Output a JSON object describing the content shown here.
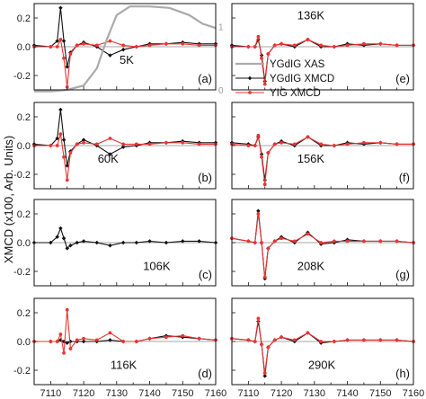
{
  "figure": {
    "ylabel": "XMCD (x100, Arb. Units)"
  },
  "legend": [
    {
      "name": "YGdIG XAS",
      "color": "#aaaaaa",
      "marker": "none"
    },
    {
      "name": "YGdIG XMCD",
      "color": "#111111",
      "marker": "diamond"
    },
    {
      "name": "YIG XMCD",
      "color": "#ee3333",
      "marker": "circle"
    }
  ],
  "chart_data": [
    {
      "id": "a",
      "type": "line",
      "label": "(a)",
      "temperature": "5K",
      "xlim": [
        7105,
        7160
      ],
      "ylim": [
        -0.3,
        0.3
      ],
      "yticks": [
        "0.2",
        "0.0",
        "-0.2"
      ],
      "xticks": [],
      "xas_ticks": [
        "1",
        "0"
      ],
      "series": [
        {
          "name": "YGdIG XMCD",
          "x": [
            7105,
            7110,
            7112,
            7113,
            7114,
            7115,
            7116,
            7118,
            7120,
            7124,
            7128,
            7132,
            7136,
            7140,
            7145,
            7150,
            7155,
            7160
          ],
          "y": [
            0.01,
            0.0,
            0.04,
            0.27,
            0.04,
            -0.14,
            -0.04,
            0.01,
            0.03,
            0.0,
            -0.06,
            -0.02,
            0.0,
            0.02,
            0.02,
            0.03,
            0.02,
            0.02
          ]
        },
        {
          "name": "YIG XMCD",
          "x": [
            7105,
            7110,
            7112,
            7113,
            7114,
            7115,
            7116,
            7118,
            7120,
            7124,
            7128,
            7132,
            7136,
            7140,
            7145,
            7150,
            7155,
            7160
          ],
          "y": [
            0.0,
            0.0,
            0.0,
            0.05,
            -0.08,
            -0.28,
            -0.05,
            0.01,
            0.02,
            0.01,
            0.04,
            0.01,
            0.0,
            0.01,
            0.02,
            0.02,
            0.01,
            0.01
          ]
        },
        {
          "name": "YGdIG XAS",
          "x": [
            7105,
            7110,
            7115,
            7120,
            7124,
            7127,
            7130,
            7134,
            7140,
            7146,
            7152,
            7156,
            7160
          ],
          "y": [
            -0.31,
            -0.31,
            -0.3,
            -0.27,
            -0.15,
            0.05,
            0.22,
            0.28,
            0.28,
            0.27,
            0.22,
            0.16,
            0.13
          ]
        }
      ]
    },
    {
      "id": "b",
      "type": "line",
      "label": "(b)",
      "temperature": "60K",
      "xlim": [
        7105,
        7160
      ],
      "ylim": [
        -0.3,
        0.3
      ],
      "yticks": [
        "0.2",
        "0.0",
        "-0.2"
      ],
      "xticks": [],
      "series": [
        {
          "name": "YGdIG XMCD",
          "x": [
            7105,
            7110,
            7112,
            7113,
            7114,
            7115,
            7116,
            7118,
            7120,
            7124,
            7128,
            7132,
            7136,
            7140,
            7145,
            7150,
            7155,
            7160
          ],
          "y": [
            0.01,
            0.0,
            0.05,
            0.25,
            0.04,
            -0.14,
            -0.04,
            0.01,
            0.04,
            0.0,
            -0.06,
            -0.01,
            0.0,
            0.02,
            0.02,
            0.03,
            0.02,
            0.02
          ]
        },
        {
          "name": "YIG XMCD",
          "x": [
            7105,
            7110,
            7112,
            7113,
            7114,
            7115,
            7116,
            7118,
            7120,
            7124,
            7128,
            7132,
            7136,
            7140,
            7145,
            7150,
            7155,
            7160
          ],
          "y": [
            0.0,
            0.0,
            0.0,
            0.08,
            -0.08,
            -0.24,
            -0.05,
            0.01,
            0.02,
            0.01,
            0.05,
            0.01,
            0.01,
            0.01,
            0.02,
            0.02,
            0.01,
            0.01
          ]
        }
      ]
    },
    {
      "id": "c",
      "type": "line",
      "label": "(c)",
      "temperature": "106K",
      "xlim": [
        7105,
        7160
      ],
      "ylim": [
        -0.3,
        0.3
      ],
      "yticks": [
        "0.2",
        "0.0",
        "-0.2"
      ],
      "xticks": [],
      "series": [
        {
          "name": "YGdIG XMCD",
          "x": [
            7105,
            7110,
            7112,
            7113,
            7114,
            7115,
            7116,
            7118,
            7120,
            7124,
            7128,
            7132,
            7136,
            7140,
            7145,
            7150,
            7155,
            7160
          ],
          "y": [
            0.0,
            0.0,
            0.04,
            0.1,
            0.03,
            -0.04,
            -0.02,
            0.0,
            0.01,
            0.0,
            -0.02,
            0.0,
            0.0,
            0.01,
            0.0,
            0.01,
            0.01,
            0.0
          ]
        }
      ]
    },
    {
      "id": "d",
      "type": "line",
      "label": "(d)",
      "temperature": "116K",
      "xlim": [
        7105,
        7160
      ],
      "ylim": [
        -0.3,
        0.3
      ],
      "yticks": [
        "0.2",
        "0.0",
        "-0.2"
      ],
      "xticks": [
        "7110",
        "7120",
        "7130",
        "7140",
        "7150",
        "7160"
      ],
      "series": [
        {
          "name": "YGdIG XMCD",
          "x": [
            7105,
            7110,
            7112,
            7113,
            7114,
            7115,
            7116,
            7118,
            7120,
            7124,
            7128,
            7132,
            7136,
            7140,
            7145,
            7150,
            7155,
            7160
          ],
          "y": [
            0.0,
            0.0,
            0.0,
            0.01,
            0.0,
            -0.01,
            0.0,
            0.0,
            0.0,
            0.0,
            0.01,
            0.0,
            0.0,
            0.02,
            0.04,
            0.03,
            0.02,
            0.01
          ]
        },
        {
          "name": "YIG XMCD",
          "x": [
            7105,
            7110,
            7112,
            7113,
            7114,
            7115,
            7116,
            7118,
            7120,
            7124,
            7128,
            7132,
            7136,
            7140,
            7145,
            7150,
            7155,
            7160
          ],
          "y": [
            0.0,
            0.0,
            0.0,
            0.05,
            -0.08,
            0.22,
            -0.05,
            0.01,
            0.02,
            0.01,
            0.06,
            0.0,
            0.0,
            0.02,
            0.03,
            0.04,
            0.02,
            0.01
          ]
        }
      ]
    },
    {
      "id": "e",
      "type": "line",
      "label": "(e)",
      "temperature": "136K",
      "xlim": [
        7105,
        7160
      ],
      "ylim": [
        -0.3,
        0.3
      ],
      "yticks": [],
      "xticks": [],
      "series": [
        {
          "name": "YGdIG XMCD",
          "x": [
            7105,
            7110,
            7112,
            7113,
            7114,
            7115,
            7116,
            7118,
            7120,
            7124,
            7128,
            7132,
            7136,
            7140,
            7145,
            7150,
            7155,
            7160
          ],
          "y": [
            0.01,
            0.0,
            0.0,
            0.05,
            -0.06,
            -0.24,
            -0.05,
            0.01,
            0.02,
            0.0,
            0.05,
            0.0,
            0.0,
            0.02,
            0.01,
            0.02,
            0.01,
            0.01
          ]
        },
        {
          "name": "YIG XMCD",
          "x": [
            7105,
            7110,
            7112,
            7113,
            7114,
            7115,
            7116,
            7118,
            7120,
            7124,
            7128,
            7132,
            7136,
            7140,
            7145,
            7150,
            7155,
            7160
          ],
          "y": [
            0.0,
            0.0,
            0.0,
            0.07,
            -0.08,
            -0.26,
            -0.05,
            0.01,
            0.02,
            0.01,
            0.05,
            0.01,
            0.0,
            0.01,
            0.02,
            0.02,
            0.01,
            0.01
          ]
        }
      ]
    },
    {
      "id": "f",
      "type": "line",
      "label": "(f)",
      "temperature": "156K",
      "xlim": [
        7105,
        7160
      ],
      "ylim": [
        -0.3,
        0.3
      ],
      "yticks": [],
      "xticks": [],
      "series": [
        {
          "name": "YGdIG XMCD",
          "x": [
            7105,
            7110,
            7112,
            7113,
            7114,
            7115,
            7116,
            7118,
            7120,
            7124,
            7128,
            7132,
            7136,
            7140,
            7145,
            7150,
            7155,
            7160
          ],
          "y": [
            0.02,
            0.01,
            0.0,
            0.06,
            -0.06,
            -0.24,
            -0.05,
            0.01,
            0.03,
            0.0,
            0.06,
            0.0,
            0.0,
            0.02,
            0.01,
            0.02,
            0.01,
            0.01
          ]
        },
        {
          "name": "YIG XMCD",
          "x": [
            7105,
            7110,
            7112,
            7113,
            7114,
            7115,
            7116,
            7118,
            7120,
            7124,
            7128,
            7132,
            7136,
            7140,
            7145,
            7150,
            7155,
            7160
          ],
          "y": [
            0.01,
            0.0,
            0.0,
            0.07,
            -0.08,
            -0.27,
            -0.05,
            0.01,
            0.02,
            0.01,
            0.06,
            0.01,
            0.0,
            0.01,
            0.02,
            0.02,
            0.01,
            0.01
          ]
        }
      ]
    },
    {
      "id": "g",
      "type": "line",
      "label": "(g)",
      "temperature": "208K",
      "xlim": [
        7105,
        7160
      ],
      "ylim": [
        -0.3,
        0.3
      ],
      "yticks": [],
      "xticks": [],
      "series": [
        {
          "name": "YGdIG XMCD",
          "x": [
            7105,
            7110,
            7112,
            7113,
            7114,
            7115,
            7116,
            7118,
            7120,
            7124,
            7128,
            7132,
            7136,
            7140,
            7145,
            7150,
            7155,
            7160
          ],
          "y": [
            0.03,
            0.01,
            0.0,
            0.22,
            0.0,
            -0.25,
            -0.04,
            0.01,
            0.04,
            0.0,
            0.07,
            -0.01,
            0.0,
            0.02,
            0.01,
            0.01,
            0.01,
            0.0
          ]
        },
        {
          "name": "YIG XMCD",
          "x": [
            7105,
            7110,
            7112,
            7113,
            7114,
            7115,
            7116,
            7118,
            7120,
            7124,
            7128,
            7132,
            7136,
            7140,
            7145,
            7150,
            7155,
            7160
          ],
          "y": [
            0.03,
            0.01,
            0.0,
            0.2,
            0.0,
            -0.24,
            -0.04,
            0.01,
            0.03,
            0.01,
            0.06,
            0.0,
            0.01,
            0.01,
            0.01,
            0.01,
            0.01,
            0.0
          ]
        }
      ]
    },
    {
      "id": "h",
      "type": "line",
      "label": "(h)",
      "temperature": "290K",
      "xlim": [
        7105,
        7160
      ],
      "ylim": [
        -0.3,
        0.3
      ],
      "yticks": [],
      "xticks": [
        "7110",
        "7120",
        "7130",
        "7140",
        "7150",
        "7160"
      ],
      "series": [
        {
          "name": "YGdIG XMCD",
          "x": [
            7105,
            7110,
            7112,
            7113,
            7114,
            7115,
            7116,
            7118,
            7120,
            7124,
            7128,
            7132,
            7136,
            7140,
            7145,
            7150,
            7155,
            7160
          ],
          "y": [
            0.02,
            0.01,
            0.0,
            0.14,
            -0.02,
            -0.24,
            -0.04,
            0.01,
            0.03,
            0.0,
            0.06,
            -0.01,
            0.0,
            0.01,
            0.01,
            0.01,
            0.01,
            0.0
          ]
        },
        {
          "name": "YIG XMCD",
          "x": [
            7105,
            7110,
            7112,
            7113,
            7114,
            7115,
            7116,
            7118,
            7120,
            7124,
            7128,
            7132,
            7136,
            7140,
            7145,
            7150,
            7155,
            7160
          ],
          "y": [
            0.02,
            0.01,
            0.0,
            0.16,
            -0.02,
            -0.22,
            -0.04,
            0.01,
            0.03,
            0.01,
            0.06,
            0.0,
            0.0,
            0.01,
            0.01,
            0.01,
            0.01,
            0.0
          ]
        }
      ]
    }
  ]
}
